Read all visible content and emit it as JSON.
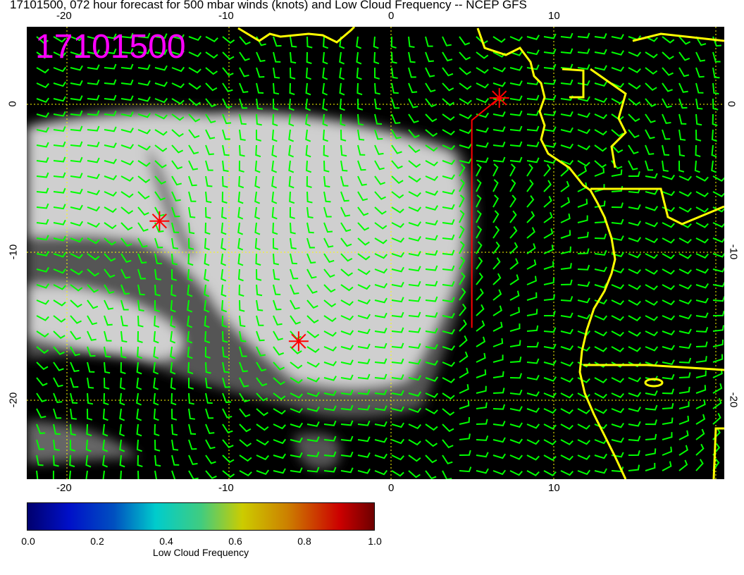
{
  "title": "17101500, 072 hour forecast for 500 mbar winds (knots) and Low Cloud Frequency -- NCEP GFS",
  "stamp": "17101500",
  "map": {
    "lon_range": [
      -22.5,
      20.6
    ],
    "lat_range": [
      -25.3,
      5.2
    ],
    "lon_ticks": [
      "-20",
      "-10",
      "0",
      "10"
    ],
    "lat_ticks": [
      "0",
      "-10",
      "-20"
    ],
    "background_color": "#000000",
    "wind_barb_color": "#00ff00",
    "coastline_color": "#ffff00",
    "graticule_color": "#ffff00",
    "markers": [
      {
        "symbol": "asterisk",
        "lon": -14.3,
        "lat": -7.9,
        "color": "#ff0000"
      },
      {
        "symbol": "asterisk",
        "lon": -5.7,
        "lat": -16.0,
        "color": "#ff0000"
      },
      {
        "symbol": "asterisk",
        "lon": 6.7,
        "lat": 0.4,
        "color": "#ff0000"
      }
    ],
    "track": {
      "color": "#ff0000",
      "points": [
        [
          5.0,
          -15.1
        ],
        [
          5.0,
          -1.1
        ],
        [
          6.7,
          0.4
        ]
      ]
    }
  },
  "colorbar": {
    "label": "Low Cloud Frequency",
    "ticks": [
      "0.0",
      "0.2",
      "0.4",
      "0.6",
      "0.8",
      "1.0"
    ],
    "range": [
      0.0,
      1.0
    ],
    "colormap": [
      "#00006e",
      "#0010c8",
      "#00cccc",
      "#cccc00",
      "#cc0000",
      "#6e0000"
    ]
  }
}
